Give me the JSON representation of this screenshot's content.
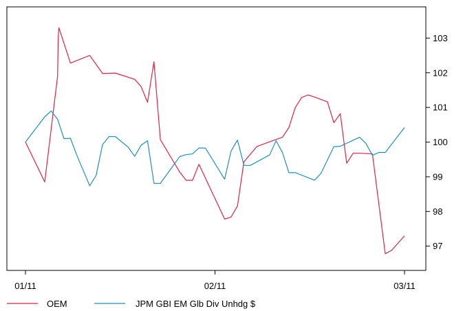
{
  "chart_data": {
    "type": "line",
    "x_ticks": [
      "01/11",
      "02/11",
      "03/11"
    ],
    "y_ticks": [
      97,
      98,
      99,
      100,
      101,
      102,
      103
    ],
    "ylim": [
      96.3,
      103.9
    ],
    "x_domain": [
      0,
      59
    ],
    "grid": false,
    "legend_position": "bottom-left",
    "series": [
      {
        "name": "OEM",
        "color": "#e0223f",
        "points": [
          [
            0,
            100.0
          ],
          [
            3,
            98.85
          ],
          [
            5,
            101.9
          ],
          [
            5.1,
            103.0
          ],
          [
            5.2,
            103.3
          ],
          [
            7,
            102.28
          ],
          [
            10,
            102.5
          ],
          [
            12,
            101.98
          ],
          [
            14,
            101.99
          ],
          [
            17,
            101.81
          ],
          [
            18,
            101.6
          ],
          [
            19,
            101.15
          ],
          [
            20,
            102.32
          ],
          [
            21,
            100.07
          ],
          [
            24,
            99.14
          ],
          [
            25,
            98.9
          ],
          [
            26,
            98.9
          ],
          [
            27,
            99.36
          ],
          [
            31,
            97.78
          ],
          [
            32,
            97.84
          ],
          [
            33,
            98.16
          ],
          [
            34,
            99.43
          ],
          [
            36,
            99.87
          ],
          [
            38,
            100.01
          ],
          [
            40,
            100.14
          ],
          [
            41,
            100.42
          ],
          [
            42,
            101.0
          ],
          [
            43,
            101.29
          ],
          [
            44,
            101.36
          ],
          [
            45,
            101.3
          ],
          [
            47,
            101.16
          ],
          [
            48,
            100.56
          ],
          [
            49,
            100.82
          ],
          [
            50,
            99.39
          ],
          [
            51,
            99.68
          ],
          [
            52,
            99.68
          ],
          [
            54,
            99.66
          ],
          [
            56,
            96.78
          ],
          [
            57,
            96.88
          ],
          [
            59,
            97.3
          ]
        ]
      },
      {
        "name": "JPM GBI EM Glb Div Unhdg $",
        "color": "#1f8fbf",
        "points": [
          [
            0,
            100.0
          ],
          [
            3,
            100.73
          ],
          [
            4,
            100.9
          ],
          [
            5,
            100.66
          ],
          [
            6,
            100.1
          ],
          [
            7,
            100.11
          ],
          [
            8,
            99.62
          ],
          [
            10,
            98.74
          ],
          [
            11,
            99.04
          ],
          [
            12,
            99.93
          ],
          [
            13,
            100.16
          ],
          [
            14,
            100.16
          ],
          [
            16,
            99.85
          ],
          [
            17,
            99.59
          ],
          [
            18,
            99.91
          ],
          [
            19,
            100.04
          ],
          [
            20,
            98.81
          ],
          [
            21,
            98.81
          ],
          [
            24,
            99.58
          ],
          [
            25,
            99.64
          ],
          [
            26,
            99.66
          ],
          [
            27,
            99.83
          ],
          [
            28,
            99.83
          ],
          [
            31,
            98.93
          ],
          [
            32,
            99.74
          ],
          [
            33,
            100.06
          ],
          [
            34,
            99.33
          ],
          [
            35,
            99.33
          ],
          [
            38,
            99.63
          ],
          [
            39,
            100.04
          ],
          [
            40,
            99.7
          ],
          [
            41,
            99.12
          ],
          [
            42,
            99.12
          ],
          [
            45,
            98.9
          ],
          [
            46,
            99.1
          ],
          [
            48,
            99.87
          ],
          [
            49,
            99.88
          ],
          [
            52,
            100.14
          ],
          [
            53,
            99.96
          ],
          [
            54,
            99.62
          ],
          [
            55,
            99.7
          ],
          [
            56,
            99.7
          ],
          [
            59,
            100.42
          ]
        ]
      }
    ]
  }
}
